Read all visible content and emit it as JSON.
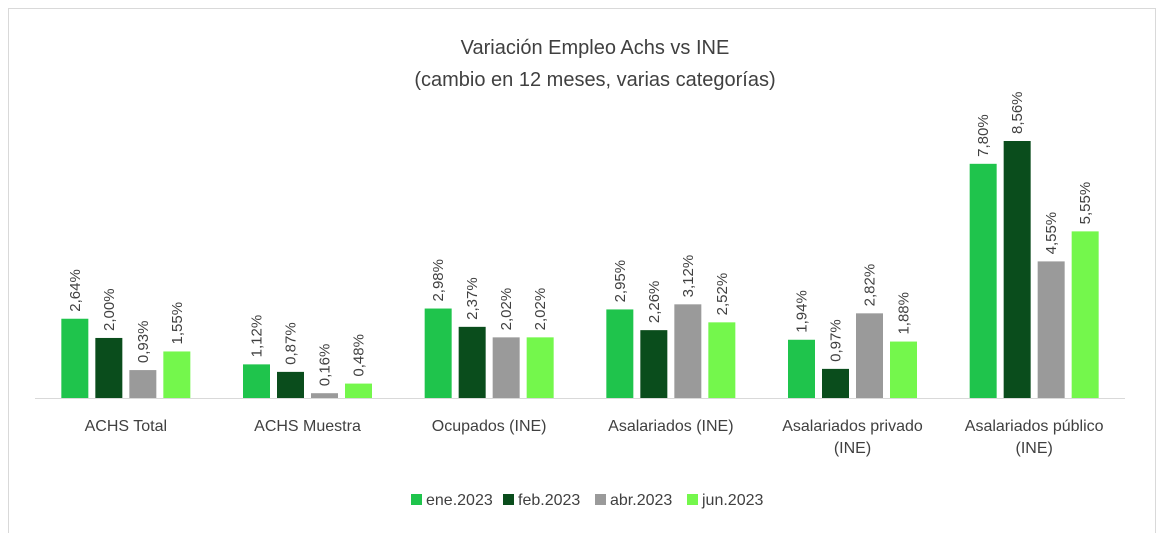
{
  "chart_data": {
    "type": "bar",
    "title": "Variación Empleo Achs vs INE",
    "subtitle": "(cambio en 12 meses, varias categorías)",
    "categories": [
      "ACHS Total",
      "ACHS Muestra",
      "Ocupados (INE)",
      "Asalariados (INE)",
      "Asalariados privado (INE)",
      "Asalariados público (INE)"
    ],
    "series": [
      {
        "name": "ene.2023",
        "color": "#1fc44c",
        "values": [
          2.64,
          1.12,
          2.98,
          2.95,
          1.94,
          7.8
        ],
        "value_labels": [
          "2,64%",
          "1,12%",
          "2,98%",
          "2,95%",
          "1,94%",
          "7,80%"
        ]
      },
      {
        "name": "feb.2023",
        "color": "#0a4d1c",
        "values": [
          2.0,
          0.87,
          2.37,
          2.26,
          0.97,
          8.56
        ],
        "value_labels": [
          "2,00%",
          "0,87%",
          "2,37%",
          "2,26%",
          "0,97%",
          "8,56%"
        ]
      },
      {
        "name": "abr.2023",
        "color": "#9a9a9a",
        "values": [
          0.93,
          0.16,
          2.02,
          3.12,
          2.82,
          4.55
        ],
        "value_labels": [
          "0,93%",
          "0,16%",
          "2,02%",
          "3,12%",
          "2,82%",
          "4,55%"
        ]
      },
      {
        "name": "jun.2023",
        "color": "#74f74c",
        "values": [
          1.55,
          0.48,
          2.02,
          2.52,
          1.88,
          5.55
        ],
        "value_labels": [
          "1,55%",
          "0,48%",
          "2,02%",
          "2,52%",
          "1,88%",
          "5,55%"
        ]
      }
    ],
    "legend": "bottom"
  }
}
